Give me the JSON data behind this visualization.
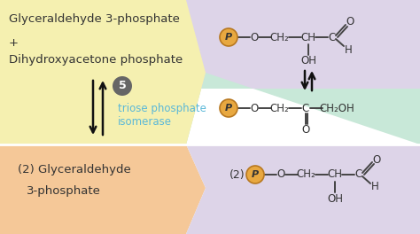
{
  "bg_top_left": "#f5f0b0",
  "bg_top_right": "#ddd4e8",
  "bg_mid_right": "#c8e8d8",
  "bg_bottom_left": "#f5c898",
  "bg_bottom_right": "#ddd4e8",
  "text_color": "#333333",
  "enzyme_color": "#5ab8d8",
  "step_bg": "#666666",
  "phosphate_fill": "#e8a840",
  "phosphate_edge": "#b87820",
  "arrow_color": "#111111",
  "bond_color": "#444444",
  "top_left_line1": "Glyceraldehyde 3-phosphate",
  "top_left_line2": "+",
  "top_left_line3": "Dihydroxyacetone phosphate",
  "bottom_left_line1": "(2) Glyceraldehyde",
  "bottom_left_line2": "3-phosphate",
  "enzyme_line1": "triose phosphate",
  "enzyme_line2": "isomerase",
  "step_number": "5",
  "fig_width": 4.74,
  "fig_height": 2.64,
  "dpi": 100
}
